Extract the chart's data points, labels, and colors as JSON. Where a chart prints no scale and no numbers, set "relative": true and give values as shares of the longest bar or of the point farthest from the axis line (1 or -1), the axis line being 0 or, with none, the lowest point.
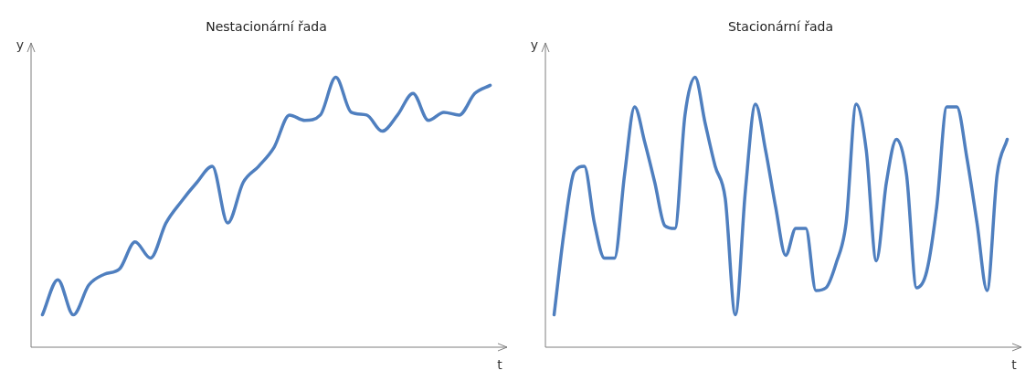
{
  "chart_data": [
    {
      "type": "line",
      "title": "Nestacionární řada",
      "xlabel": "t",
      "ylabel": "y",
      "relative": true,
      "categories": [
        null,
        null,
        null,
        null,
        null,
        null,
        null,
        null,
        null,
        null,
        null,
        null,
        null,
        null,
        null,
        null,
        null,
        null,
        null,
        null,
        null,
        null,
        null,
        null,
        null,
        null,
        null,
        null,
        null,
        null
      ],
      "series": [
        {
          "color": "#4f7fbf",
          "values": [
            0.12,
            0.25,
            0.12,
            0.23,
            0.27,
            0.29,
            0.39,
            0.33,
            0.46,
            0.54,
            0.61,
            0.67,
            0.46,
            0.61,
            0.67,
            0.74,
            0.86,
            0.84,
            0.86,
            1,
            0.87,
            0.86,
            0.8,
            0.86,
            0.94,
            0.84,
            0.87,
            0.86,
            0.94,
            0.97
          ]
        }
      ],
      "legend": false,
      "marker": "none"
    },
    {
      "type": "line",
      "title": "Stacionární řada",
      "xlabel": "t",
      "ylabel": "y",
      "relative": true,
      "categories": [
        null,
        null,
        null,
        null,
        null,
        null,
        null,
        null,
        null,
        null,
        null,
        null,
        null,
        null,
        null,
        null,
        null,
        null,
        null,
        null,
        null,
        null,
        null,
        null,
        null,
        null,
        null,
        null,
        null,
        null,
        null,
        null,
        null,
        null,
        null,
        null,
        null,
        null,
        null,
        null,
        null,
        null,
        null,
        null,
        null,
        null
      ],
      "series": [
        {
          "color": "#4f7fbf",
          "values": [
            0.12,
            0.43,
            0.65,
            0.67,
            0.46,
            0.33,
            0.33,
            0.64,
            0.89,
            0.76,
            0.61,
            0.45,
            0.44,
            0.86,
            1,
            0.83,
            0.67,
            0.55,
            0.12,
            0.58,
            0.9,
            0.73,
            0.52,
            0.34,
            0.44,
            0.44,
            0.21,
            0.22,
            0.31,
            0.46,
            0.9,
            0.73,
            0.32,
            0.61,
            0.77,
            0.64,
            0.22,
            0.28,
            0.52,
            0.89,
            0.89,
            0.7,
            0.46,
            0.21,
            0.64,
            0.77
          ]
        }
      ],
      "legend": false,
      "marker": "none"
    }
  ]
}
